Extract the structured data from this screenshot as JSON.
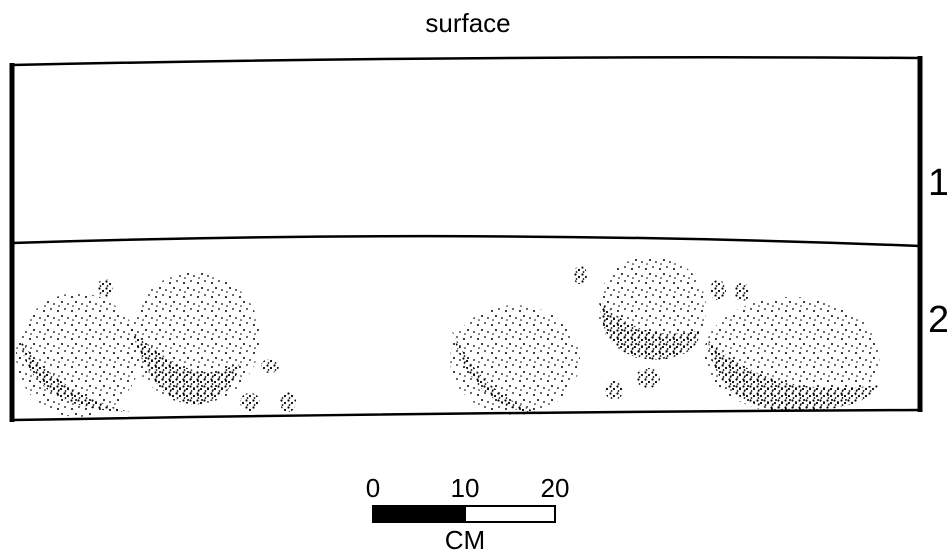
{
  "header": {
    "title": "surface"
  },
  "layers": [
    {
      "label": "1"
    },
    {
      "label": "2"
    }
  ],
  "scale_bar": {
    "ticks": [
      "0",
      "10",
      "20"
    ],
    "unit": "CM"
  }
}
